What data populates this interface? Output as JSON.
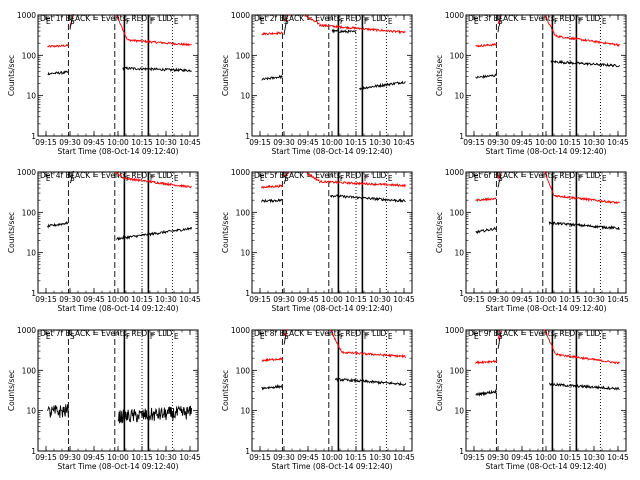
{
  "chart_data": {
    "type": "line",
    "y_scale": "log",
    "ylim": [
      1,
      1000
    ],
    "xlim": [
      "09:10",
      "10:50"
    ],
    "x_ticks": [
      "09:15",
      "09:30",
      "09:45",
      "10:00",
      "10:15",
      "10:30",
      "10:45"
    ],
    "y_ticks": [
      "1",
      "10",
      "100",
      "1000"
    ],
    "ylabel": "Counts/sec",
    "xlabel": "Start Time (08-Oct-14 09:12:40)",
    "series_colors": {
      "Events": "#000000",
      "LLD": "#ff0000"
    },
    "markers": [
      {
        "label": "E",
        "time": "09:14",
        "style": "none"
      },
      {
        "label": "S",
        "time": "09:29",
        "style": "dashed"
      },
      {
        "label": "",
        "time": "09:58",
        "style": "dashed"
      },
      {
        "label": "F",
        "time": "10:04",
        "style": "solid"
      },
      {
        "label": "",
        "time": "10:15",
        "style": "dotted"
      },
      {
        "label": "F",
        "time": "10:19",
        "style": "solid"
      },
      {
        "label": "E",
        "time": "10:34",
        "style": "dotted"
      }
    ],
    "panels": [
      {
        "title": "Det 1f BLACK = Events, RED = LLD",
        "red": [
          {
            "t0": "09:16",
            "t1": "09:29",
            "v0": 165,
            "v1": 175
          },
          {
            "t0": "09:30",
            "t1": "09:32",
            "v0": 500,
            "v1": 1000
          },
          {
            "t0": "09:59",
            "t1": "10:06",
            "v0": 1000,
            "v1": 240
          },
          {
            "t0": "10:06",
            "t1": "10:46",
            "v0": 240,
            "v1": 180
          }
        ],
        "black": [
          {
            "t0": "09:16",
            "t1": "09:29",
            "v0": 35,
            "v1": 38
          },
          {
            "t0": "09:30",
            "t1": "09:32",
            "v0": 450,
            "v1": 1000
          },
          {
            "t0": "10:03",
            "t1": "10:46",
            "v0": 48,
            "v1": 42
          }
        ]
      },
      {
        "title": "Det 2f BLACK = Events, RED = LLD",
        "red": [
          {
            "t0": "09:16",
            "t1": "09:29",
            "v0": 340,
            "v1": 360
          },
          {
            "t0": "09:30",
            "t1": "09:33",
            "v0": 700,
            "v1": 1000
          },
          {
            "t0": "09:43",
            "t1": "09:52",
            "v0": 950,
            "v1": 600
          },
          {
            "t0": "09:52",
            "t1": "10:46",
            "v0": 560,
            "v1": 370
          }
        ],
        "black": [
          {
            "t0": "09:16",
            "t1": "09:29",
            "v0": 25,
            "v1": 30
          },
          {
            "t0": "09:30",
            "t1": "09:32",
            "v0": 300,
            "v1": 1000
          },
          {
            "t0": "10:00",
            "t1": "10:15",
            "v0": 400,
            "v1": 380
          },
          {
            "t0": "10:17",
            "t1": "10:46",
            "v0": 15,
            "v1": 22
          }
        ]
      },
      {
        "title": "Det 3f BLACK = Events, RED = LLD",
        "red": [
          {
            "t0": "09:16",
            "t1": "09:29",
            "v0": 170,
            "v1": 185
          },
          {
            "t0": "09:30",
            "t1": "09:32",
            "v0": 600,
            "v1": 1000
          },
          {
            "t0": "09:59",
            "t1": "10:06",
            "v0": 1000,
            "v1": 300
          },
          {
            "t0": "10:06",
            "t1": "10:46",
            "v0": 300,
            "v1": 180
          }
        ],
        "black": [
          {
            "t0": "09:16",
            "t1": "09:29",
            "v0": 28,
            "v1": 32
          },
          {
            "t0": "09:30",
            "t1": "09:32",
            "v0": 400,
            "v1": 1000
          },
          {
            "t0": "10:03",
            "t1": "10:46",
            "v0": 70,
            "v1": 55
          }
        ]
      },
      {
        "title": "Det 4f BLACK = Events, RED = LLD",
        "red": [
          {
            "t0": "09:58",
            "t1": "10:04",
            "v0": 1000,
            "v1": 700
          },
          {
            "t0": "10:04",
            "t1": "10:46",
            "v0": 700,
            "v1": 420
          }
        ],
        "black": [
          {
            "t0": "09:16",
            "t1": "09:29",
            "v0": 45,
            "v1": 55
          },
          {
            "t0": "09:30",
            "t1": "09:32",
            "v0": 500,
            "v1": 1000
          },
          {
            "t0": "09:59",
            "t1": "10:46",
            "v0": 22,
            "v1": 40
          }
        ]
      },
      {
        "title": "Det 5f BLACK = Events, RED = LLD",
        "red": [
          {
            "t0": "09:16",
            "t1": "09:29",
            "v0": 420,
            "v1": 450
          },
          {
            "t0": "09:30",
            "t1": "09:33",
            "v0": 800,
            "v1": 1000
          },
          {
            "t0": "09:44",
            "t1": "09:52",
            "v0": 950,
            "v1": 600
          },
          {
            "t0": "09:52",
            "t1": "10:46",
            "v0": 580,
            "v1": 460
          }
        ],
        "black": [
          {
            "t0": "09:16",
            "t1": "09:29",
            "v0": 190,
            "v1": 200
          },
          {
            "t0": "09:30",
            "t1": "09:32",
            "v0": 500,
            "v1": 1000
          },
          {
            "t0": "09:59",
            "t1": "10:46",
            "v0": 260,
            "v1": 190
          }
        ]
      },
      {
        "title": "Det 6f BLACK = Events, RED = LLD",
        "red": [
          {
            "t0": "09:16",
            "t1": "09:29",
            "v0": 200,
            "v1": 220
          },
          {
            "t0": "09:30",
            "t1": "09:32",
            "v0": 700,
            "v1": 1000
          },
          {
            "t0": "09:59",
            "t1": "10:05",
            "v0": 1000,
            "v1": 260
          },
          {
            "t0": "10:05",
            "t1": "10:46",
            "v0": 260,
            "v1": 170
          }
        ],
        "black": [
          {
            "t0": "09:16",
            "t1": "09:29",
            "v0": 32,
            "v1": 40
          },
          {
            "t0": "09:30",
            "t1": "09:32",
            "v0": 400,
            "v1": 1000
          },
          {
            "t0": "10:02",
            "t1": "10:46",
            "v0": 55,
            "v1": 40
          }
        ]
      },
      {
        "title": "Det 7f BLACK = Events, RED = LLD",
        "red": [],
        "black": [
          {
            "t0": "09:16",
            "t1": "09:29",
            "v0": 9,
            "v1": 10
          },
          {
            "t0": "10:00",
            "t1": "10:46",
            "v0": 7,
            "v1": 9
          }
        ]
      },
      {
        "title": "Det 8f BLACK = Events, RED = LLD",
        "red": [
          {
            "t0": "09:16",
            "t1": "09:29",
            "v0": 175,
            "v1": 195
          },
          {
            "t0": "09:30",
            "t1": "09:32",
            "v0": 700,
            "v1": 1000
          },
          {
            "t0": "09:59",
            "t1": "10:06",
            "v0": 1000,
            "v1": 280
          },
          {
            "t0": "10:06",
            "t1": "10:46",
            "v0": 280,
            "v1": 220
          }
        ],
        "black": [
          {
            "t0": "09:16",
            "t1": "09:29",
            "v0": 36,
            "v1": 40
          },
          {
            "t0": "09:30",
            "t1": "09:32",
            "v0": 450,
            "v1": 1000
          },
          {
            "t0": "10:02",
            "t1": "10:46",
            "v0": 60,
            "v1": 45
          }
        ]
      },
      {
        "title": "Det 9f BLACK = Events, RED = LLD",
        "red": [
          {
            "t0": "09:16",
            "t1": "09:29",
            "v0": 155,
            "v1": 170
          },
          {
            "t0": "09:30",
            "t1": "09:32",
            "v0": 600,
            "v1": 1000
          },
          {
            "t0": "09:59",
            "t1": "10:06",
            "v0": 1000,
            "v1": 250
          },
          {
            "t0": "10:06",
            "t1": "10:46",
            "v0": 250,
            "v1": 150
          }
        ],
        "black": [
          {
            "t0": "09:16",
            "t1": "09:29",
            "v0": 25,
            "v1": 30
          },
          {
            "t0": "09:30",
            "t1": "09:32",
            "v0": 350,
            "v1": 1000
          },
          {
            "t0": "10:02",
            "t1": "10:46",
            "v0": 45,
            "v1": 35
          }
        ]
      }
    ]
  }
}
